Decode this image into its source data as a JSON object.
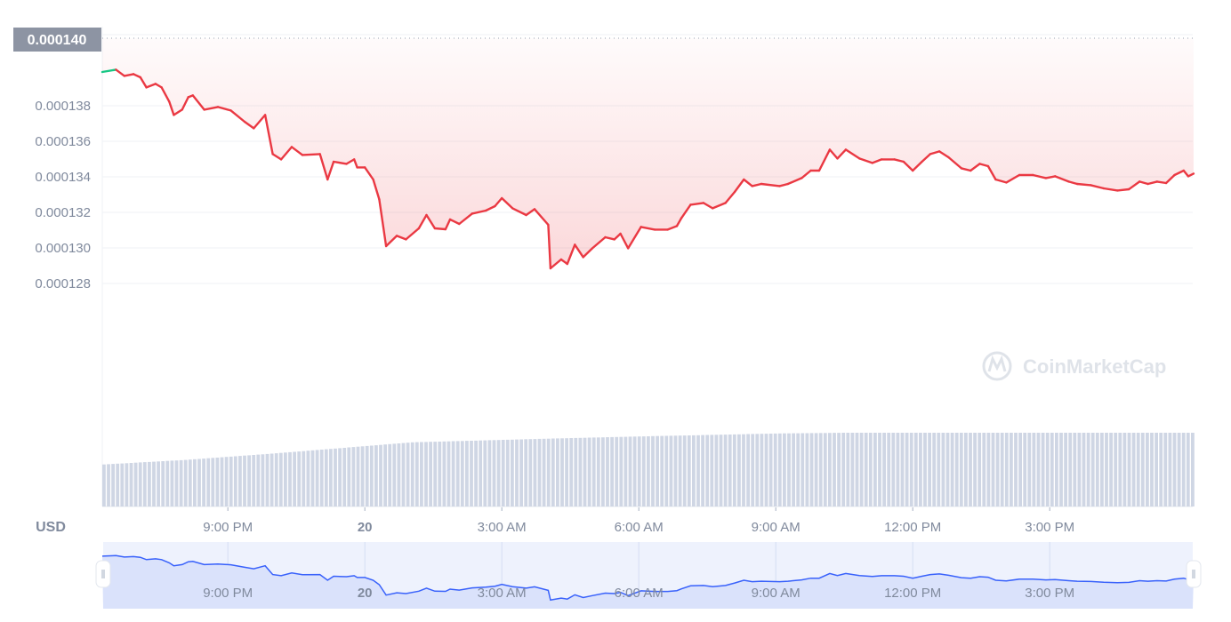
{
  "chart_data": {
    "type": "line",
    "currency_label": "USD",
    "current_price_label": "0.000140",
    "y_tick_labels": [
      "0.000138",
      "0.000136",
      "0.000134",
      "0.000132",
      "0.000130",
      "0.000128"
    ],
    "y_ticks": [
      0.000138,
      0.000136,
      0.000134,
      0.000132,
      0.00013,
      0.000128
    ],
    "x_tick_labels": [
      {
        "time": "19 21:00",
        "label": "9:00 PM",
        "bold": false
      },
      {
        "time": "20 00:00",
        "label": "20",
        "bold": true
      },
      {
        "time": "20 03:00",
        "label": "3:00 AM",
        "bold": false
      },
      {
        "time": "20 06:00",
        "label": "6:00 AM",
        "bold": false
      },
      {
        "time": "20 09:00",
        "label": "9:00 AM",
        "bold": false
      },
      {
        "time": "20 12:00",
        "label": "12:00 PM",
        "bold": false
      },
      {
        "time": "20 15:00",
        "label": "3:00 PM",
        "bold": false
      }
    ],
    "navigator_tick_labels": [
      {
        "time": "19 21:00",
        "label": "9:00 PM",
        "bold": false
      },
      {
        "time": "20 00:00",
        "label": "20",
        "bold": true
      },
      {
        "time": "20 03:00",
        "label": "3:00 AM",
        "bold": false
      },
      {
        "time": "20 06:00",
        "label": "6:00 AM",
        "bold": false
      },
      {
        "time": "20 09:00",
        "label": "9:00 AM",
        "bold": false
      },
      {
        "time": "20 12:00",
        "label": "12:00 PM",
        "bold": false
      },
      {
        "time": "20 15:00",
        "label": "3:00 PM",
        "bold": false
      }
    ],
    "watermark": "CoinMarketCap",
    "grid": true,
    "colors": {
      "up": "#16c784",
      "down": "#ea3943",
      "navigator_line": "#3861fb",
      "volume": "#cfd6e4",
      "grid": "#eff2f5",
      "price_tag": "#8d94a3"
    },
    "ylim": [
      0.0001272,
      0.0001402
    ],
    "series": [
      {
        "points": [
          [
            "19 18:15",
            0.0001399
          ],
          [
            "19 18:33",
            0.00014003
          ],
          [
            "19 18:44",
            0.00013968
          ],
          [
            "19 18:56",
            0.00013978
          ],
          [
            "19 19:05",
            0.0001396
          ],
          [
            "19 19:13",
            0.00013903
          ],
          [
            "19 19:25",
            0.00013923
          ],
          [
            "19 19:33",
            0.00013903
          ],
          [
            "19 19:43",
            0.00013823
          ],
          [
            "19 19:49",
            0.00013748
          ],
          [
            "19 20:00",
            0.00013778
          ],
          [
            "19 20:08",
            0.00013848
          ],
          [
            "19 20:14",
            0.00013858
          ],
          [
            "19 20:29",
            0.00013778
          ],
          [
            "19 20:47",
            0.00013793
          ],
          [
            "19 21:04",
            0.00013773
          ],
          [
            "19 21:22",
            0.0001371
          ],
          [
            "19 21:34",
            0.00013673
          ],
          [
            "19 21:49",
            0.00013748
          ],
          [
            "19 21:59",
            0.00013528
          ],
          [
            "19 22:10",
            0.00013498
          ],
          [
            "19 22:24",
            0.00013568
          ],
          [
            "19 22:38",
            0.00013523
          ],
          [
            "19 23:01",
            0.00013528
          ],
          [
            "19 23:11",
            0.00013385
          ],
          [
            "19 23:19",
            0.00013485
          ],
          [
            "19 23:36",
            0.00013473
          ],
          [
            "19 23:46",
            0.00013498
          ],
          [
            "19 23:50",
            0.00013453
          ],
          [
            "20 00:00",
            0.00013453
          ],
          [
            "20 00:11",
            0.00013385
          ],
          [
            "20 00:19",
            0.00013273
          ],
          [
            "20 00:28",
            0.0001301
          ],
          [
            "20 00:42",
            0.00013068
          ],
          [
            "20 00:54",
            0.00013048
          ],
          [
            "20 01:11",
            0.0001311
          ],
          [
            "20 01:21",
            0.00013185
          ],
          [
            "20 01:32",
            0.0001311
          ],
          [
            "20 01:46",
            0.00013105
          ],
          [
            "20 01:52",
            0.0001316
          ],
          [
            "20 02:04",
            0.00013135
          ],
          [
            "20 02:21",
            0.00013193
          ],
          [
            "20 02:39",
            0.0001321
          ],
          [
            "20 02:51",
            0.00013235
          ],
          [
            "20 03:00",
            0.0001328
          ],
          [
            "20 03:14",
            0.00013223
          ],
          [
            "20 03:32",
            0.00013185
          ],
          [
            "20 03:43",
            0.00013218
          ],
          [
            "20 04:01",
            0.0001313
          ],
          [
            "20 04:04",
            0.00012885
          ],
          [
            "20 04:18",
            0.00012935
          ],
          [
            "20 04:26",
            0.0001291
          ],
          [
            "20 04:36",
            0.00013018
          ],
          [
            "20 04:47",
            0.00012948
          ],
          [
            "20 04:59",
            0.00012998
          ],
          [
            "20 05:16",
            0.0001306
          ],
          [
            "20 05:28",
            0.00013048
          ],
          [
            "20 05:36",
            0.0001308
          ],
          [
            "20 05:46",
            0.00012998
          ],
          [
            "20 06:03",
            0.00013118
          ],
          [
            "20 06:21",
            0.00013103
          ],
          [
            "20 06:38",
            0.00013103
          ],
          [
            "20 06:50",
            0.00013123
          ],
          [
            "20 06:56",
            0.00013168
          ],
          [
            "20 07:08",
            0.00013243
          ],
          [
            "20 07:25",
            0.00013253
          ],
          [
            "20 07:37",
            0.00013223
          ],
          [
            "20 07:54",
            0.00013253
          ],
          [
            "20 08:06",
            0.00013315
          ],
          [
            "20 08:18",
            0.00013385
          ],
          [
            "20 08:29",
            0.00013348
          ],
          [
            "20 08:41",
            0.0001336
          ],
          [
            "20 09:05",
            0.00013348
          ],
          [
            "20 09:16",
            0.0001336
          ],
          [
            "20 09:34",
            0.00013393
          ],
          [
            "20 09:46",
            0.00013435
          ],
          [
            "20 09:57",
            0.00013435
          ],
          [
            "20 10:11",
            0.00013553
          ],
          [
            "20 10:21",
            0.00013503
          ],
          [
            "20 10:32",
            0.00013553
          ],
          [
            "20 10:50",
            0.00013503
          ],
          [
            "20 11:07",
            0.00013478
          ],
          [
            "20 11:19",
            0.00013498
          ],
          [
            "20 11:36",
            0.00013498
          ],
          [
            "20 11:48",
            0.00013485
          ],
          [
            "20 12:00",
            0.00013435
          ],
          [
            "20 12:12",
            0.00013485
          ],
          [
            "20 12:23",
            0.00013528
          ],
          [
            "20 12:35",
            0.00013543
          ],
          [
            "20 12:47",
            0.0001351
          ],
          [
            "20 13:04",
            0.00013448
          ],
          [
            "20 13:16",
            0.00013435
          ],
          [
            "20 13:28",
            0.00013473
          ],
          [
            "20 13:39",
            0.0001346
          ],
          [
            "20 13:49",
            0.00013385
          ],
          [
            "20 14:03",
            0.00013368
          ],
          [
            "20 14:20",
            0.0001341
          ],
          [
            "20 14:38",
            0.0001341
          ],
          [
            "20 14:55",
            0.00013393
          ],
          [
            "20 15:07",
            0.00013403
          ],
          [
            "20 15:25",
            0.00013373
          ],
          [
            "20 15:36",
            0.0001336
          ],
          [
            "20 15:54",
            0.00013353
          ],
          [
            "20 16:11",
            0.00013335
          ],
          [
            "20 16:29",
            0.00013323
          ],
          [
            "20 16:44",
            0.0001333
          ],
          [
            "20 16:58",
            0.00013373
          ],
          [
            "20 17:09",
            0.0001336
          ],
          [
            "20 17:21",
            0.00013373
          ],
          [
            "20 17:33",
            0.00013365
          ],
          [
            "20 17:44",
            0.0001341
          ],
          [
            "20 17:56",
            0.00013435
          ],
          [
            "20 18:02",
            0.00013403
          ],
          [
            "20 18:09",
            0.00013418
          ]
        ]
      }
    ],
    "volume_relative": [
      [
        "19 18:15",
        0.57
      ],
      [
        "19 20:00",
        0.63
      ],
      [
        "19 22:00",
        0.72
      ],
      [
        "20 00:00",
        0.82
      ],
      [
        "20 01:00",
        0.87
      ],
      [
        "20 04:00",
        0.92
      ],
      [
        "20 06:00",
        0.95
      ],
      [
        "20 09:00",
        0.99
      ],
      [
        "20 10:30",
        1.0
      ],
      [
        "20 18:09",
        1.0
      ]
    ]
  }
}
